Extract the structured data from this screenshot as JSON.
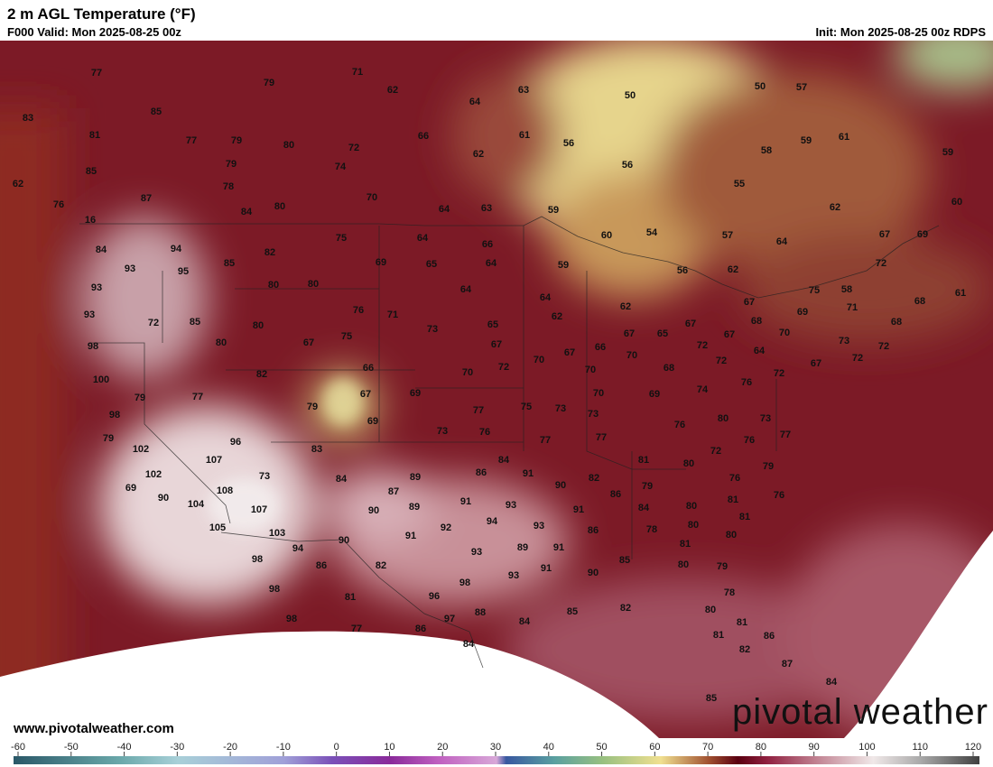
{
  "header": {
    "title": "2 m AGL Temperature (°F)",
    "valid": "F000 Valid: Mon 2025-08-25 00z",
    "init": "Init: Mon 2025-08-25 00z RDPS"
  },
  "map": {
    "temperature_labels": [
      77,
      79,
      71,
      62,
      64,
      63,
      50,
      50,
      57,
      83,
      85,
      81,
      77,
      79,
      80,
      72,
      66,
      61,
      56,
      58,
      59,
      61,
      59,
      85,
      79,
      74,
      62,
      56,
      55,
      62,
      78,
      87,
      70,
      76,
      84,
      80,
      64,
      63,
      59,
      62,
      60,
      16,
      60,
      54,
      57,
      64,
      67,
      69,
      94,
      82,
      75,
      64,
      66,
      84,
      93,
      95,
      85,
      69,
      65,
      64,
      59,
      56,
      62,
      72,
      93,
      80,
      80,
      64,
      64,
      75,
      58,
      68,
      61,
      93,
      72,
      85,
      80,
      76,
      71,
      62,
      62,
      67,
      69,
      71,
      68,
      98,
      80,
      67,
      75,
      73,
      65,
      67,
      66,
      67,
      65,
      67,
      68,
      67,
      70,
      73,
      72,
      100,
      82,
      66,
      70,
      72,
      70,
      67,
      70,
      72,
      72,
      64,
      67,
      72,
      79,
      77,
      67,
      69,
      70,
      68,
      72,
      76,
      70,
      69,
      74,
      98,
      79,
      69,
      77,
      75,
      73,
      73,
      76,
      80,
      73,
      79,
      73,
      76,
      77,
      77,
      76,
      77,
      102,
      96,
      83,
      107,
      84,
      81,
      80,
      72,
      79,
      102,
      73,
      84,
      89,
      86,
      91,
      82,
      76,
      69,
      108,
      87,
      90,
      79,
      86,
      81,
      76,
      90,
      104,
      107,
      91,
      93,
      90,
      89,
      91,
      84,
      80,
      81,
      105,
      103,
      92,
      94,
      93,
      86,
      78,
      80,
      80,
      94,
      90,
      91,
      89,
      91,
      93,
      81,
      98,
      86,
      82,
      91,
      85,
      80,
      79,
      93,
      90,
      98,
      81,
      96,
      98,
      78,
      84,
      85,
      82,
      98,
      77,
      86,
      97,
      88,
      80,
      81,
      84,
      81,
      86,
      82,
      87,
      84,
      85
    ]
  },
  "colorbar": {
    "ticks": [
      -60,
      -50,
      -40,
      -30,
      -20,
      -10,
      0,
      10,
      20,
      30,
      40,
      50,
      60,
      70,
      80,
      90,
      100,
      110,
      120
    ]
  },
  "footer": {
    "website": "www.pivotalweather.com",
    "logo": "pivotal weather"
  }
}
